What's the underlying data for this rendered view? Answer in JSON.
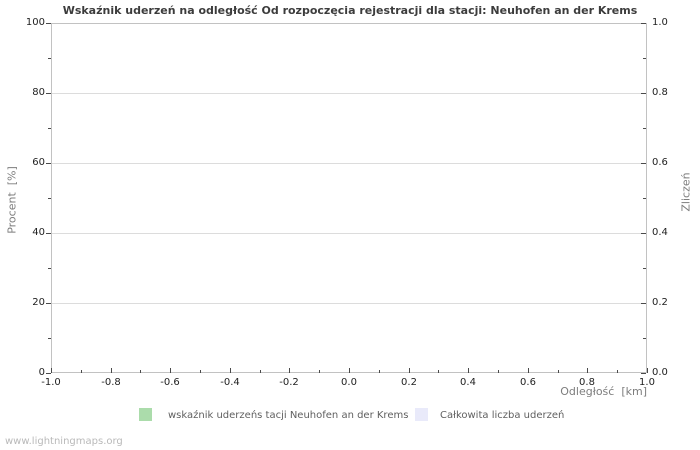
{
  "title": "Wskaźnik uderzeń na odległość Od rozpoczęcia rejestracji dla stacji: Neuhofen an der Krems",
  "watermark": "www.lightningmaps.org",
  "axes": {
    "left": {
      "label": "Procent  [%]",
      "tick_labels": [
        "0",
        "20",
        "40",
        "60",
        "80",
        "100"
      ]
    },
    "right": {
      "label": "Zliczeń",
      "tick_labels": [
        "0.0",
        "0.2",
        "0.4",
        "0.6",
        "0.8",
        "1.0"
      ]
    },
    "bottom": {
      "label": "Odległość  [km]",
      "tick_labels": [
        "-1.0",
        "-0.8",
        "-0.6",
        "-0.4",
        "-0.2",
        "0.0",
        "0.2",
        "0.4",
        "0.6",
        "0.8",
        "1.0"
      ]
    }
  },
  "legend": [
    {
      "label": "wskaźnik uderzeńs tacji Neuhofen an der Krems",
      "color": "#abdcab"
    },
    {
      "label": "Całkowita liczba uderzeń",
      "color": "#e9eafa"
    }
  ],
  "chart_data": {
    "type": "line",
    "title": "Wskaźnik uderzeń na odległość Od rozpoczęcia rejestracji dla stacji: Neuhofen an der Krems",
    "xlabel": "Odległość [km]",
    "ylabel": "Procent [%]",
    "ylabel_right": "Zliczeń",
    "xlim": [
      -1.0,
      1.0
    ],
    "ylim": [
      0,
      100
    ],
    "ylim_right": [
      0.0,
      1.0
    ],
    "x_ticks": [
      -1.0,
      -0.8,
      -0.6,
      -0.4,
      -0.2,
      0.0,
      0.2,
      0.4,
      0.6,
      0.8,
      1.0
    ],
    "y_ticks": [
      0,
      20,
      40,
      60,
      80,
      100
    ],
    "y_ticks_right": [
      0.0,
      0.2,
      0.4,
      0.6,
      0.8,
      1.0
    ],
    "grid": "horizontal",
    "legend_position": "bottom",
    "series": [
      {
        "name": "wskaźnik uderzeńs tacji Neuhofen an der Krems",
        "color": "#abdcab",
        "axis": "left",
        "x": [],
        "values": []
      },
      {
        "name": "Całkowita liczba uderzeń",
        "color": "#e9eafa",
        "axis": "right",
        "x": [],
        "values": []
      }
    ]
  }
}
